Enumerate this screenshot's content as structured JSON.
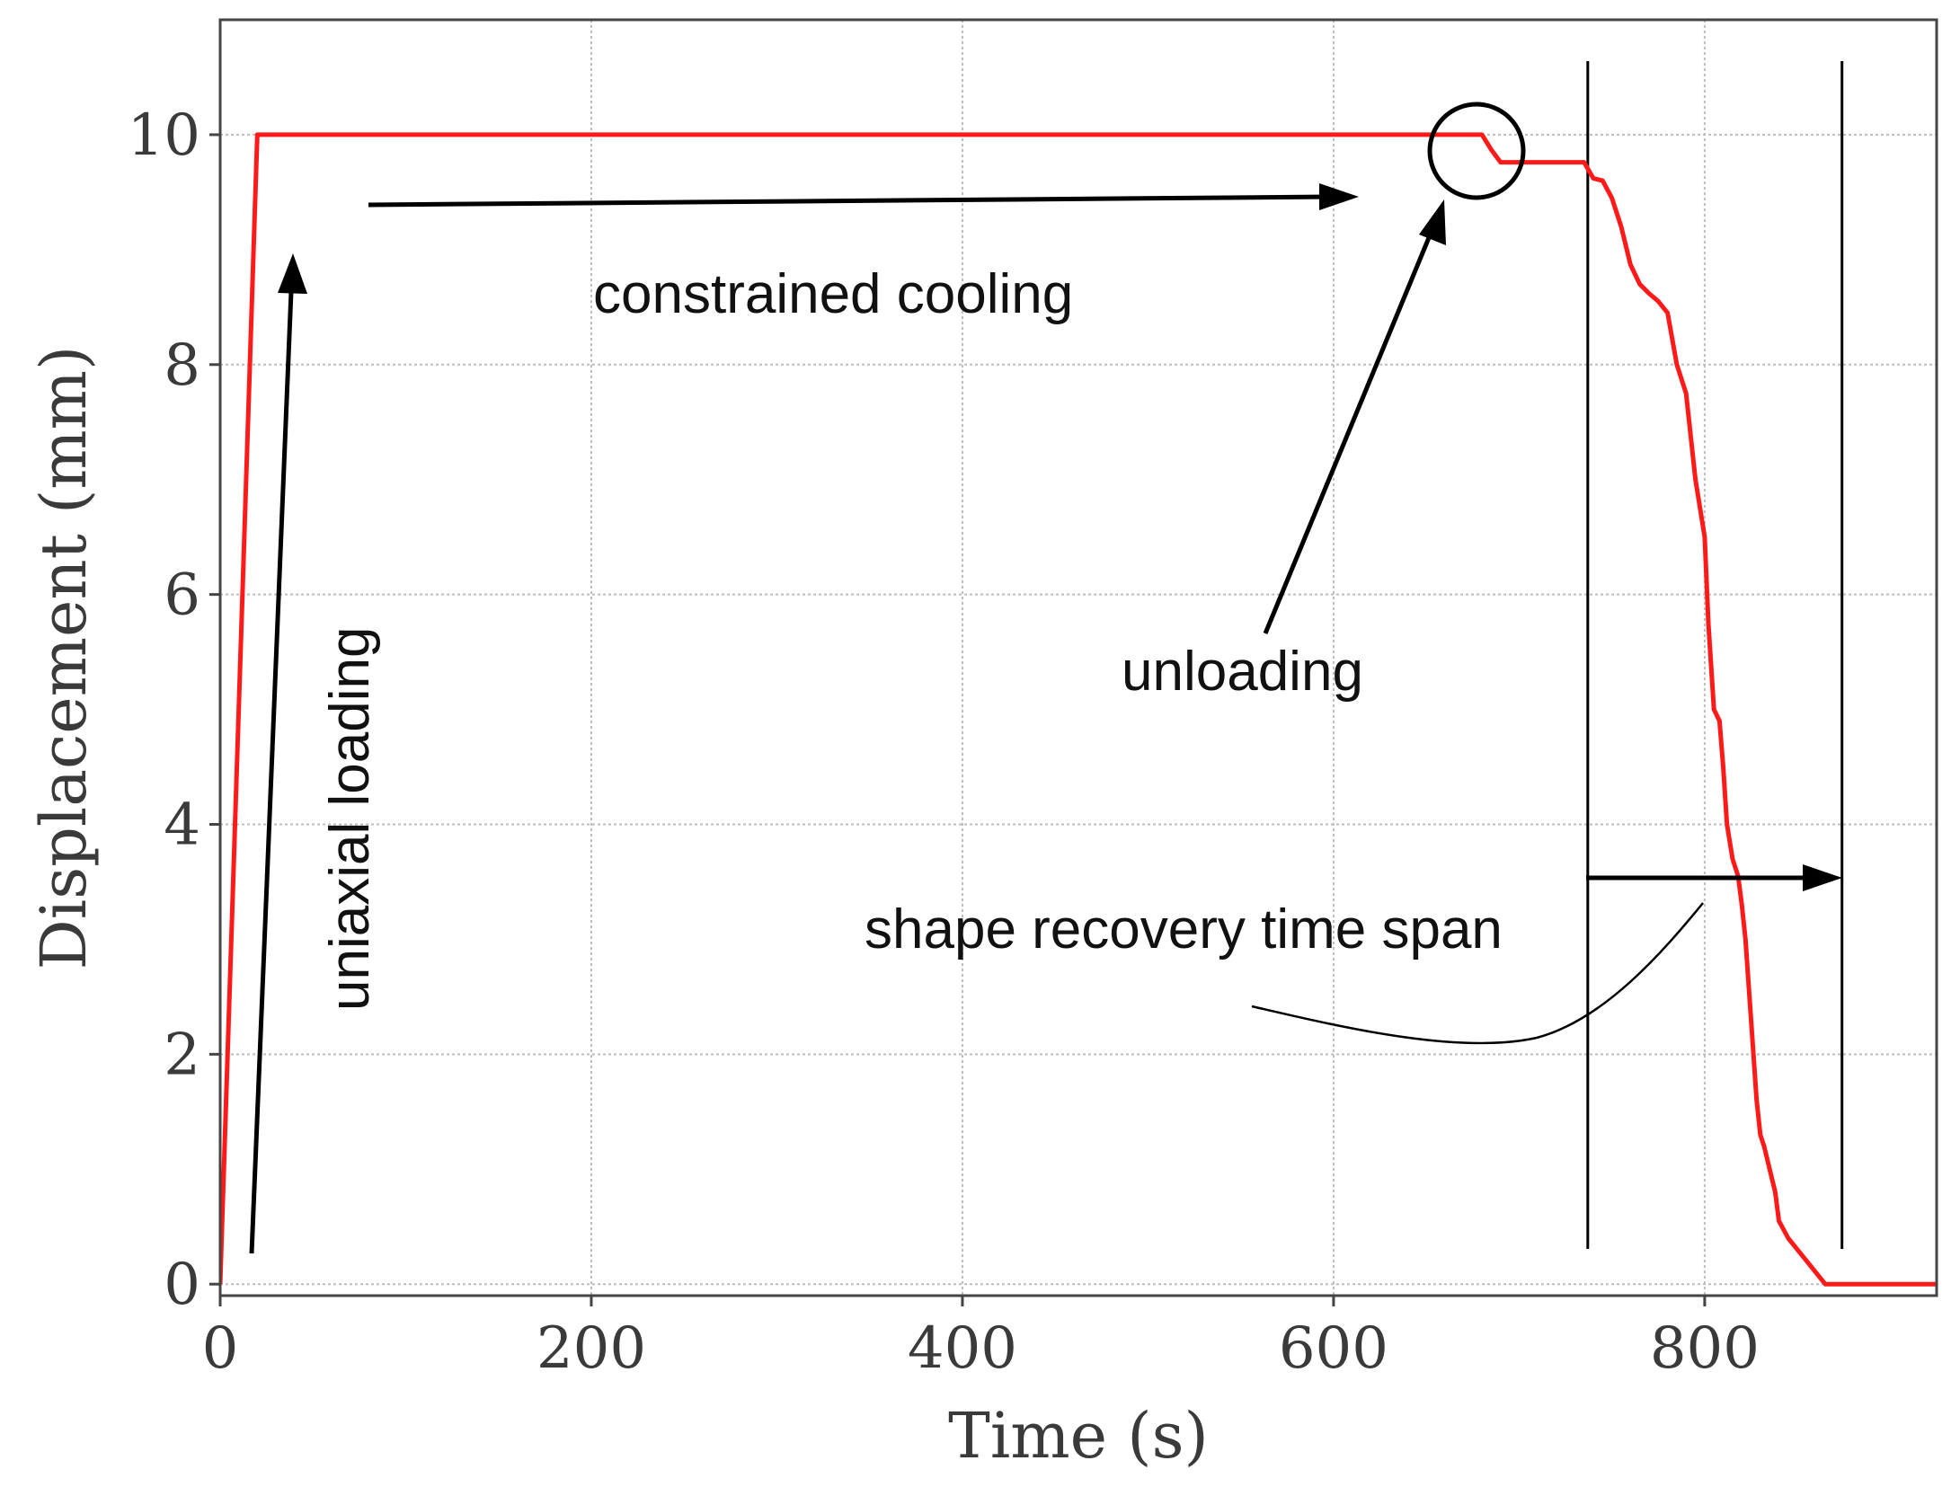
{
  "chart_data": {
    "type": "line",
    "title": "",
    "xlabel": "Time (s)",
    "ylabel": "Displacement (mm)",
    "xlim": [
      0,
      925
    ],
    "ylim": [
      -0.1,
      11.0
    ],
    "xticks": [
      0,
      200,
      400,
      600,
      800
    ],
    "yticks": [
      0,
      2,
      4,
      6,
      8,
      10
    ],
    "grid": true,
    "series": [
      {
        "name": "displacement",
        "color": "#ff1a1a",
        "x": [
          0,
          20,
          680,
          685,
          690,
          735,
          740,
          745,
          750,
          755,
          760,
          765,
          770,
          775,
          780,
          785,
          790,
          795,
          800,
          802,
          805,
          808,
          810,
          812,
          815,
          818,
          820,
          822,
          825,
          828,
          830,
          832,
          835,
          838,
          840,
          845,
          850,
          860,
          865,
          870,
          925
        ],
        "y": [
          0,
          10.0,
          10.0,
          9.87,
          9.76,
          9.76,
          9.62,
          9.6,
          9.45,
          9.2,
          8.87,
          8.7,
          8.62,
          8.55,
          8.45,
          8.0,
          7.75,
          7.0,
          6.5,
          5.75,
          5.0,
          4.9,
          4.5,
          4.0,
          3.7,
          3.55,
          3.3,
          3.0,
          2.3,
          1.6,
          1.3,
          1.2,
          1.0,
          0.8,
          0.55,
          0.4,
          0.3,
          0.1,
          0.0,
          0.0,
          0.0
        ]
      }
    ],
    "vertical_lines": [
      737,
      874
    ],
    "annotations": [
      {
        "id": "loading",
        "text": "uniaxial loading"
      },
      {
        "id": "cooling",
        "text": "constrained cooling"
      },
      {
        "id": "unloading",
        "text": "unloading"
      },
      {
        "id": "recovery",
        "text": "shape recovery time span"
      }
    ]
  }
}
